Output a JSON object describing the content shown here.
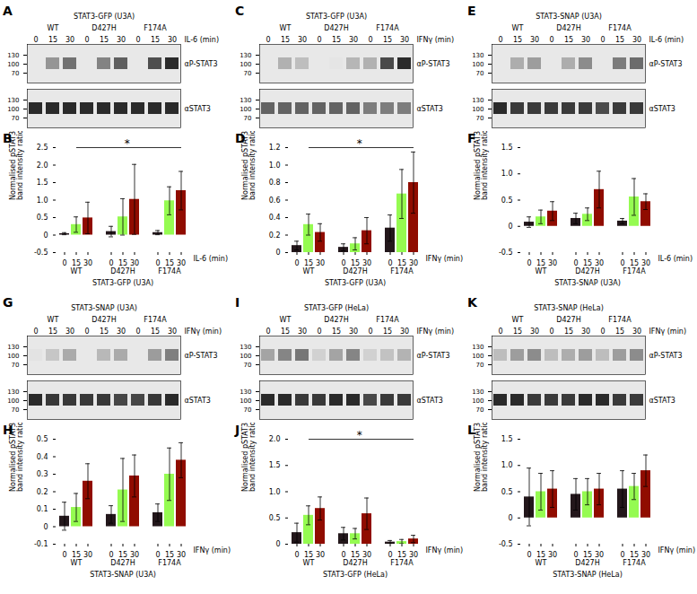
{
  "chart_data": [
    {
      "type": "blot",
      "panel": "A",
      "title": "STAT3-GFP (U3A)",
      "xlabel": "IL-6 (min)",
      "groups": [
        "WT",
        "D427H",
        "F174A"
      ],
      "categories": [
        "0",
        "15",
        "30",
        "0",
        "15",
        "30",
        "0",
        "15",
        "30"
      ],
      "rows": [
        "αP-STAT3",
        "αSTAT3"
      ],
      "markers": [
        130,
        100,
        70
      ],
      "cells": [
        [
          0,
          0.3,
          0.4,
          0,
          0.35,
          0.45,
          0,
          0.5,
          0.6
        ],
        [
          0.6,
          0.6,
          0.6,
          0.6,
          0.6,
          0.6,
          0.6,
          0.6,
          0.6
        ]
      ]
    },
    {
      "type": "blot",
      "panel": "C",
      "title": "STAT3-GFP (U3A)",
      "xlabel": "IFNγ (min)",
      "groups": [
        "WT",
        "D427H",
        "F174A"
      ],
      "categories": [
        "0",
        "15",
        "30",
        "0",
        "15",
        "30",
        "0",
        "15",
        "30"
      ],
      "rows": [
        "αP-STAT3",
        "αSTAT3"
      ],
      "markers": [
        130,
        100,
        70
      ],
      "cells": [
        [
          0,
          0.3,
          0.25,
          0,
          0.1,
          0.28,
          0.3,
          0.7,
          0.82
        ],
        [
          0.6,
          0.6,
          0.6,
          0.6,
          0.6,
          0.6,
          0.5,
          0.5,
          0.5
        ]
      ]
    },
    {
      "type": "blot",
      "panel": "E",
      "title": "STAT3-SNAP (U3A)",
      "xlabel": "IL-6 (min)",
      "groups": [
        "WT",
        "D427H",
        "F174A"
      ],
      "categories": [
        "0",
        "15",
        "30",
        "0",
        "15",
        "30",
        "0",
        "15",
        "30"
      ],
      "rows": [
        "αP-STAT3",
        "αSTAT3"
      ],
      "markers": [
        130,
        100,
        70
      ],
      "cells": [
        [
          0,
          0.25,
          0.3,
          0,
          0.25,
          0.35,
          0,
          0.4,
          0.45
        ],
        [
          0.65,
          0.6,
          0.6,
          0.6,
          0.6,
          0.6,
          0.55,
          0.6,
          0.6
        ]
      ]
    },
    {
      "type": "bar",
      "panel": "B",
      "title": "STAT3-GFP (U3A)",
      "xlabel": "IL-6 (min)",
      "ylabel": "Normalised pSTAT3/STAT3\nband intensity ratio",
      "categories": [
        "WT",
        "D427H",
        "F174A"
      ],
      "series": [
        {
          "name": "0",
          "values": [
            0.04,
            0.1,
            0.07
          ],
          "errors": [
            0.03,
            0.15,
            0.06
          ]
        },
        {
          "name": "15",
          "values": [
            0.3,
            0.52,
            0.98
          ],
          "errors": [
            0.22,
            0.52,
            0.4
          ]
        },
        {
          "name": "30",
          "values": [
            0.49,
            1.02,
            1.27
          ],
          "errors": [
            0.45,
            1.0,
            0.55
          ]
        }
      ],
      "ylim": [
        -0.5,
        2.5
      ],
      "yticks": [
        -0.5,
        0,
        0.5,
        {
          "value": 1.0,
          "label": "1.0"
        },
        1.5,
        {
          "value": 2.0,
          "label": "2.0"
        },
        2.5
      ],
      "significance": {
        "text": "*",
        "from": {
          "category": "WT",
          "series": "15"
        },
        "to": {
          "category": "F174A",
          "series": "30"
        }
      }
    },
    {
      "type": "bar",
      "panel": "D",
      "title": "STAT3-GFP (U3A)",
      "xlabel": "IFNγ (min)",
      "ylabel": "Normalised pSTAT3/STAT3\nband intensity ratio",
      "categories": [
        "WT",
        "D427H",
        "F174A"
      ],
      "series": [
        {
          "name": "0",
          "values": [
            0.08,
            0.06,
            0.28
          ],
          "errors": [
            0.05,
            0.04,
            0.15
          ]
        },
        {
          "name": "15",
          "values": [
            0.32,
            0.1,
            0.67
          ],
          "errors": [
            0.12,
            0.07,
            0.28
          ]
        },
        {
          "name": "30",
          "values": [
            0.23,
            0.25,
            0.8
          ],
          "errors": [
            0.1,
            0.15,
            0.35
          ]
        }
      ],
      "ylim": [
        0,
        1.2
      ],
      "yticks": [
        0,
        0.2,
        0.4,
        0.6,
        0.8,
        {
          "value": 1.0,
          "label": "1.0"
        },
        1.2
      ],
      "significance": {
        "text": "*",
        "from": {
          "category": "WT",
          "series": "15"
        },
        "to": {
          "category": "F174A",
          "series": "30"
        }
      }
    },
    {
      "type": "bar",
      "panel": "F",
      "title": "STAT3-SNAP (U3A)",
      "xlabel": "IL-6 (min)",
      "ylabel": "Normalised pSTAT3/STAT3\nband intensity ratio",
      "categories": [
        "WT",
        "D427H",
        "F174A"
      ],
      "series": [
        {
          "name": "0",
          "values": [
            0.08,
            0.15,
            0.1
          ],
          "errors": [
            0.1,
            0.1,
            0.05
          ]
        },
        {
          "name": "15",
          "values": [
            0.18,
            0.23,
            0.56
          ],
          "errors": [
            0.13,
            0.12,
            0.35
          ]
        },
        {
          "name": "30",
          "values": [
            0.29,
            0.7,
            0.47
          ],
          "errors": [
            0.18,
            0.35,
            0.15
          ]
        }
      ],
      "ylim": [
        -0.5,
        1.5
      ],
      "yticks": [
        -0.5,
        0,
        0.5,
        {
          "value": 1.0,
          "label": "1.0"
        },
        1.5
      ]
    },
    {
      "type": "blot",
      "panel": "G",
      "title": "STAT3-SNAP (U3A)",
      "xlabel": "IFNγ (min)",
      "groups": [
        "WT",
        "D427H",
        "F174A"
      ],
      "categories": [
        "0",
        "15",
        "30",
        "0",
        "15",
        "30",
        "0",
        "15",
        "30"
      ],
      "rows": [
        "αP-STAT3",
        "αSTAT3"
      ],
      "markers": [
        130,
        100,
        70
      ],
      "cells": [
        [
          0.1,
          0.2,
          0.3,
          0,
          0.25,
          0.3,
          0,
          0.35,
          0.45
        ],
        [
          0.75,
          0.7,
          0.7,
          0.7,
          0.7,
          0.65,
          0.65,
          0.7,
          0.75
        ]
      ]
    },
    {
      "type": "blot",
      "panel": "I",
      "title": "STAT3-GFP (HeLa)",
      "xlabel": "IFNγ (min)",
      "groups": [
        "WT",
        "D427H",
        "F174A"
      ],
      "categories": [
        "0",
        "15",
        "30",
        "0",
        "15",
        "30",
        "0",
        "15",
        "30"
      ],
      "rows": [
        "αP-STAT3",
        "αSTAT3"
      ],
      "markers": [
        130,
        100,
        70
      ],
      "cells": [
        [
          0.3,
          0.4,
          0.45,
          0.15,
          0.3,
          0.4,
          0.15,
          0.2,
          0.25
        ],
        [
          0.7,
          0.7,
          0.65,
          0.65,
          0.7,
          0.7,
          0.6,
          0.65,
          0.65
        ]
      ]
    },
    {
      "type": "blot",
      "panel": "K",
      "title": "STAT3-SNAP (HeLa)",
      "xlabel": "IFNγ (min)",
      "groups": [
        "WT",
        "D427H",
        "F174A"
      ],
      "categories": [
        "0",
        "15",
        "30",
        "0",
        "15",
        "30",
        "0",
        "15",
        "30"
      ],
      "rows": [
        "αP-STAT3",
        "αSTAT3"
      ],
      "markers": [
        130,
        100,
        70
      ],
      "cells": [
        [
          0.2,
          0.3,
          0.35,
          0.2,
          0.25,
          0.3,
          0.2,
          0.3,
          0.35
        ],
        [
          0.65,
          0.65,
          0.6,
          0.6,
          0.6,
          0.65,
          0.65,
          0.6,
          0.6
        ]
      ]
    },
    {
      "type": "bar",
      "panel": "H",
      "title": "STAT3-SNAP (U3A)",
      "xlabel": "IFNγ (min)",
      "ylabel": "Normalised pSTAT3/STAT3\nband intensity ratio",
      "categories": [
        "WT",
        "D427H",
        "F174A"
      ],
      "series": [
        {
          "name": "0",
          "values": [
            0.06,
            0.07,
            0.08
          ],
          "errors": [
            0.08,
            0.05,
            0.05
          ]
        },
        {
          "name": "15",
          "values": [
            0.11,
            0.21,
            0.3
          ],
          "errors": [
            0.08,
            0.18,
            0.15
          ]
        },
        {
          "name": "30",
          "values": [
            0.26,
            0.29,
            0.38
          ],
          "errors": [
            0.1,
            0.12,
            0.1
          ]
        }
      ],
      "ylim": [
        -0.1,
        0.5
      ],
      "yticks": [
        -0.1,
        0,
        0.1,
        0.2,
        0.3,
        0.4,
        0.5
      ]
    },
    {
      "type": "bar",
      "panel": "J",
      "title": "STAT3-GFP (HeLa)",
      "xlabel": "IFNγ (min)",
      "ylabel": "Normalised pSTAT3/STAT3\nband intensity ratio",
      "categories": [
        "WT",
        "D427H",
        "F174A"
      ],
      "series": [
        {
          "name": "0",
          "values": [
            0.22,
            0.2,
            0.04
          ],
          "errors": [
            0.18,
            0.12,
            0.03
          ]
        },
        {
          "name": "15",
          "values": [
            0.55,
            0.2,
            0.05
          ],
          "errors": [
            0.18,
            0.1,
            0.04
          ]
        },
        {
          "name": "30",
          "values": [
            0.68,
            0.58,
            0.1
          ],
          "errors": [
            0.22,
            0.3,
            0.07
          ]
        }
      ],
      "ylim": [
        0,
        2.0
      ],
      "yticks": [
        0,
        0.5,
        {
          "value": 1.0,
          "label": "1.0"
        },
        1.5,
        {
          "value": 2.0,
          "label": "2.0"
        }
      ],
      "significance": {
        "text": "*",
        "from": {
          "category": "WT",
          "series": "15"
        },
        "to": {
          "category": "F174A",
          "series": "30"
        }
      }
    },
    {
      "type": "bar",
      "panel": "L",
      "title": "STAT3-SNAP (HeLa)",
      "xlabel": "IFNγ (min)",
      "ylabel": "Normalised pSTAT3/STAT3\nband intensity ratio",
      "categories": [
        "WT",
        "D427H",
        "F174A"
      ],
      "series": [
        {
          "name": "0",
          "values": [
            0.4,
            0.45,
            0.55
          ],
          "errors": [
            0.55,
            0.3,
            0.35
          ]
        },
        {
          "name": "15",
          "values": [
            0.5,
            0.5,
            0.6
          ],
          "errors": [
            0.35,
            0.25,
            0.25
          ]
        },
        {
          "name": "30",
          "values": [
            0.55,
            0.55,
            0.9
          ],
          "errors": [
            0.35,
            0.3,
            0.3
          ]
        }
      ],
      "ylim": [
        -0.5,
        1.5
      ],
      "yticks": [
        -0.5,
        0,
        0.5,
        {
          "value": 1.0,
          "label": "1.0"
        },
        1.5
      ]
    }
  ]
}
